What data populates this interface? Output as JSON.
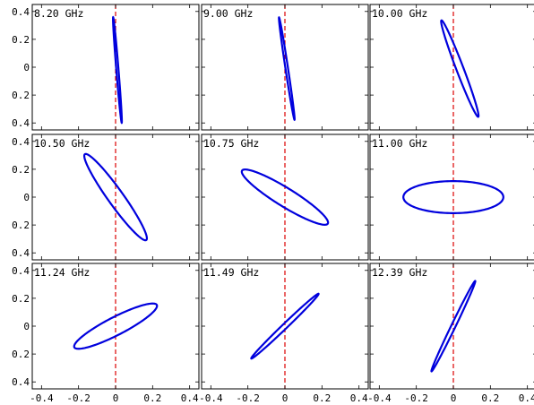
{
  "chart_data": {
    "type": "scatter",
    "layout": "3x3",
    "xlim": [
      -0.45,
      0.45
    ],
    "ylim": [
      -0.45,
      0.45
    ],
    "x_ticks": [
      "-0.4",
      "-0.2",
      "0",
      "0.2",
      "0.4"
    ],
    "x_tick_values": [
      -0.4,
      -0.2,
      0,
      0.2,
      0.4
    ],
    "y_ticks": [
      "0.4",
      "0.2",
      "0",
      "0.2",
      "0.4"
    ],
    "y_tick_values": [
      0.4,
      0.2,
      0,
      -0.2,
      -0.4
    ],
    "reference_line_x": 0,
    "colors": {
      "curve": "#0000dd",
      "reference": "#dd0000",
      "frame": "#000000"
    },
    "panels": [
      {
        "title": "8.20 GHz",
        "ellipse": {
          "cx": 0.01,
          "cy": -0.02,
          "a": 0.38,
          "b": 0.006,
          "angle_deg": -86.5
        }
      },
      {
        "title": "9.00 GHz",
        "ellipse": {
          "cx": 0.01,
          "cy": -0.01,
          "a": 0.37,
          "b": 0.007,
          "angle_deg": -83.5
        }
      },
      {
        "title": "10.00 GHz",
        "ellipse": {
          "cx": 0.035,
          "cy": -0.01,
          "a": 0.36,
          "b": 0.02,
          "angle_deg": -74
        }
      },
      {
        "title": "10.50 GHz",
        "ellipse": {
          "cx": 0.0,
          "cy": 0.0,
          "a": 0.35,
          "b": 0.045,
          "angle_deg": -62
        }
      },
      {
        "title": "10.75 GHz",
        "ellipse": {
          "cx": 0.0,
          "cy": 0.0,
          "a": 0.3,
          "b": 0.06,
          "angle_deg": -40
        }
      },
      {
        "title": "11.00 GHz",
        "ellipse": {
          "cx": 0.0,
          "cy": 0.0,
          "a": 0.27,
          "b": 0.115,
          "angle_deg": 0
        }
      },
      {
        "title": "11.24 GHz",
        "ellipse": {
          "cx": 0.0,
          "cy": 0.0,
          "a": 0.27,
          "b": 0.06,
          "angle_deg": 35
        }
      },
      {
        "title": "11.49 GHz",
        "ellipse": {
          "cx": 0.0,
          "cy": 0.0,
          "a": 0.295,
          "b": 0.015,
          "angle_deg": 52
        }
      },
      {
        "title": "12.39 GHz",
        "ellipse": {
          "cx": 0.0,
          "cy": 0.0,
          "a": 0.345,
          "b": 0.012,
          "angle_deg": 70
        }
      }
    ]
  }
}
